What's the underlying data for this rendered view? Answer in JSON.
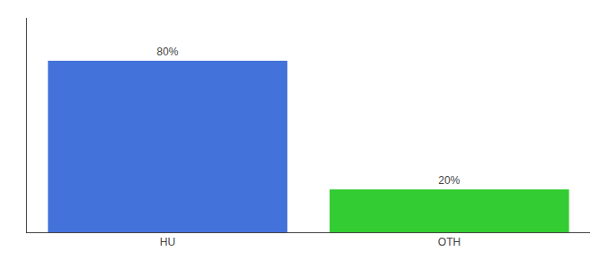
{
  "chart_data": {
    "type": "bar",
    "categories": [
      "HU",
      "OTH"
    ],
    "values": [
      80,
      20
    ],
    "value_labels": [
      "80%",
      "20%"
    ],
    "colors": [
      "#4472db",
      "#33cc33"
    ],
    "ylim": [
      0,
      100
    ],
    "grid": false,
    "data_labels": true,
    "tick_labels": "x"
  }
}
